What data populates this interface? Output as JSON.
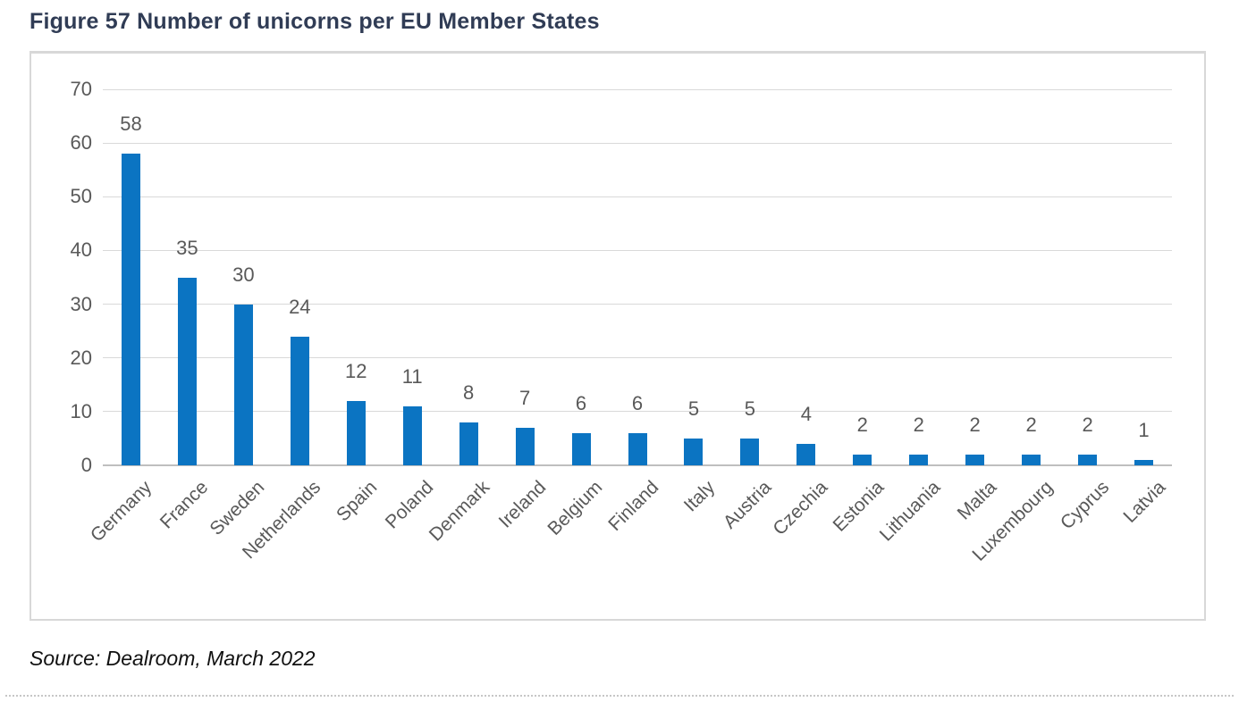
{
  "figure": {
    "title": "Figure 57 Number of unicorns per EU Member States",
    "source": "Source: Dealroom, March 2022"
  },
  "colors": {
    "bar": "#0B74C2",
    "title_text": "#303C55",
    "axis_text": "#595959",
    "gridline": "#D9D9D9",
    "axis_line": "#BFBFBF",
    "frame_border": "#D8D8D8"
  },
  "chart_data": {
    "type": "bar",
    "title": "Figure 57 Number of unicorns per EU Member States",
    "categories": [
      "Germany",
      "France",
      "Sweden",
      "Netherlands",
      "Spain",
      "Poland",
      "Denmark",
      "Ireland",
      "Belgium",
      "Finland",
      "Italy",
      "Austria",
      "Czechia",
      "Estonia",
      "Lithuania",
      "Malta",
      "Luxembourg",
      "Cyprus",
      "Latvia"
    ],
    "values": [
      58,
      35,
      30,
      24,
      12,
      11,
      8,
      7,
      6,
      6,
      5,
      5,
      4,
      2,
      2,
      2,
      2,
      2,
      1
    ],
    "xlabel": "",
    "ylabel": "",
    "ylim": [
      0,
      70
    ],
    "yticks": [
      0,
      10,
      20,
      30,
      40,
      50,
      60,
      70
    ],
    "grid": true,
    "legend": false,
    "data_labels": true,
    "x_tick_rotation_deg": -45,
    "source": "Source: Dealroom, March 2022"
  }
}
